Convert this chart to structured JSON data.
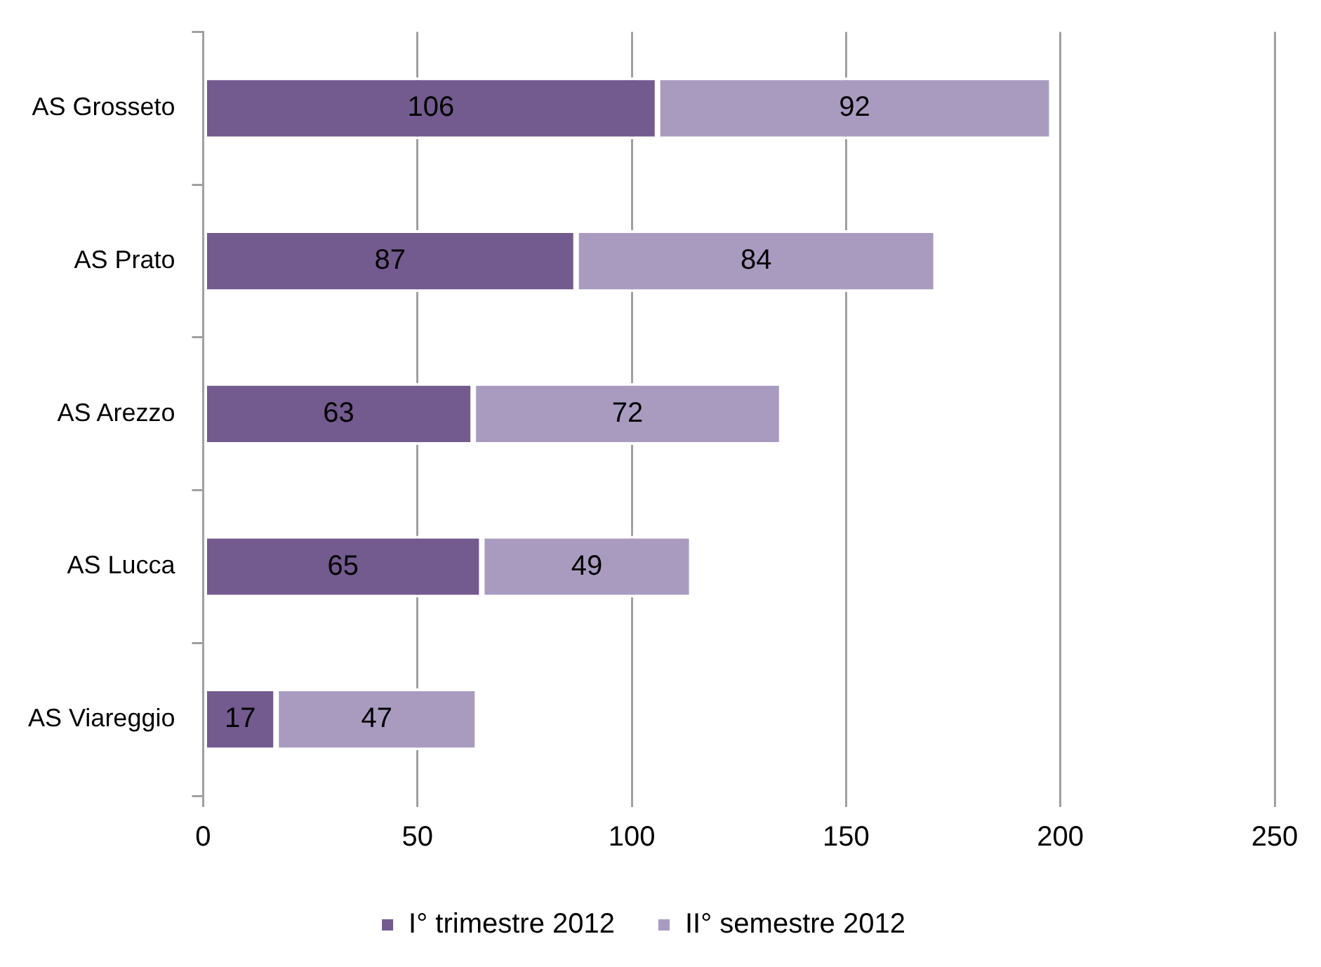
{
  "chart_data": {
    "type": "bar",
    "orientation": "horizontal",
    "stacked": true,
    "categories": [
      "AS Grosseto",
      "AS Prato",
      "AS Arezzo",
      "AS Lucca",
      "AS Viareggio"
    ],
    "series": [
      {
        "name": "I° trimestre 2012",
        "color": "#735a8f",
        "values": [
          106,
          87,
          63,
          65,
          17
        ]
      },
      {
        "name": "II° semestre 2012",
        "color": "#a99bc0",
        "values": [
          92,
          84,
          72,
          49,
          47
        ]
      }
    ],
    "xlim": [
      0,
      250
    ],
    "xticks": [
      0,
      50,
      100,
      150,
      200,
      250
    ],
    "grid": "x",
    "legend": "bottom",
    "data_labels": true
  }
}
